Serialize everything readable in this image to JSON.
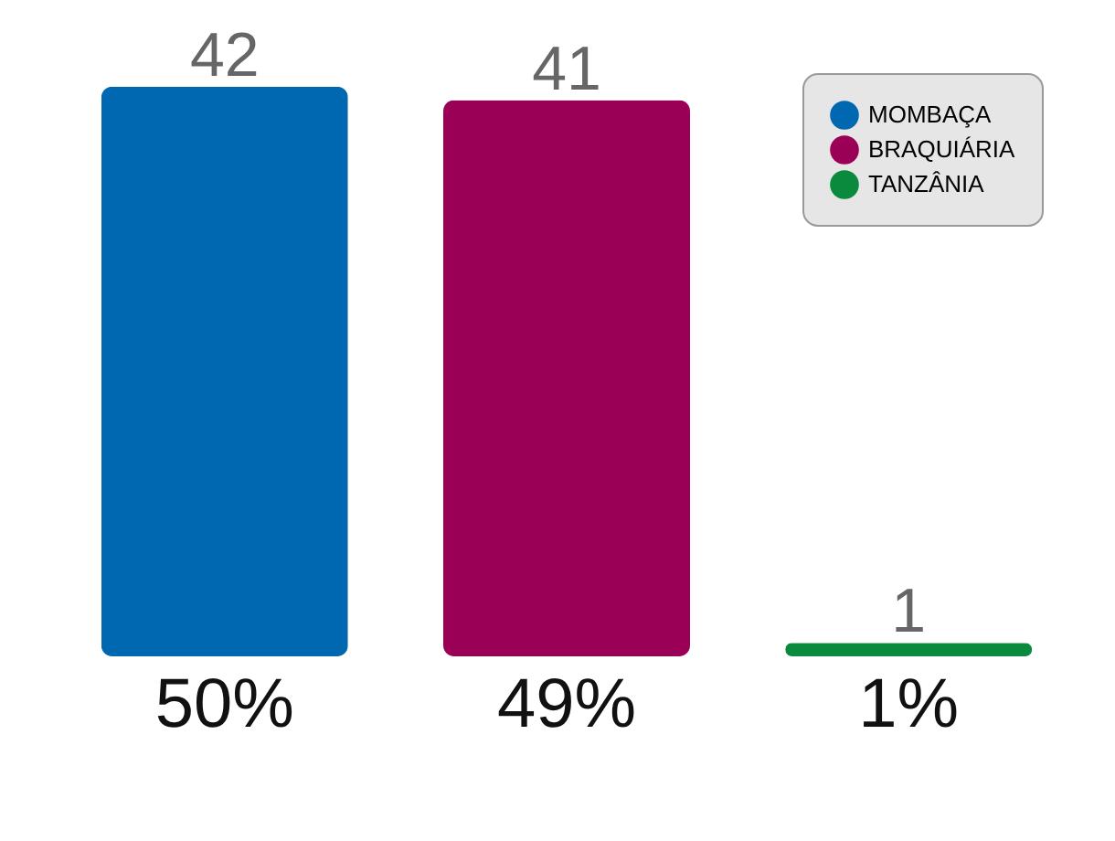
{
  "chart_data": {
    "type": "bar",
    "categories": [
      "50%",
      "49%",
      "1%"
    ],
    "series": [
      {
        "name": "MOMBAÇA",
        "color": "#0067b1",
        "values": [
          42,
          null,
          null
        ]
      },
      {
        "name": "BRAQUIÁRIA",
        "color": "#9b0057",
        "values": [
          null,
          41,
          null
        ]
      },
      {
        "name": "TANZÂNIA",
        "color": "#0a8a3c",
        "values": [
          null,
          null,
          1
        ]
      }
    ],
    "data_labels": true,
    "legend": "top right",
    "tick_labels": "x",
    "grid": false
  }
}
